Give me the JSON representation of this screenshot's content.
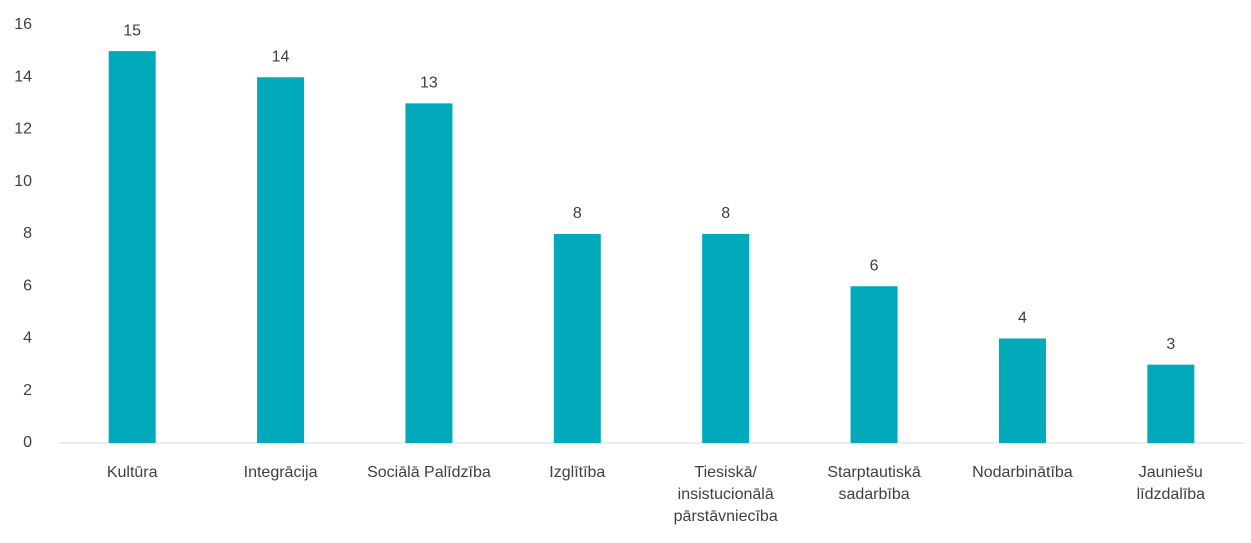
{
  "chart_data": {
    "type": "bar",
    "categories": [
      "Kultūra",
      "Integrācija",
      "Sociālā Palīdzība",
      "Izglītība",
      "Tiesiskā/ insistucionālā pārstāvniecība",
      "Starptautiskā sadarbība",
      "Nodarbinātība",
      "Jauniešu līdzdalība"
    ],
    "values": [
      15,
      14,
      13,
      8,
      8,
      6,
      4,
      3
    ],
    "color": "#00aabb",
    "ylim": [
      0,
      16
    ],
    "yticks": [
      0,
      2,
      4,
      6,
      8,
      10,
      12,
      14,
      16
    ],
    "grid": false
  }
}
